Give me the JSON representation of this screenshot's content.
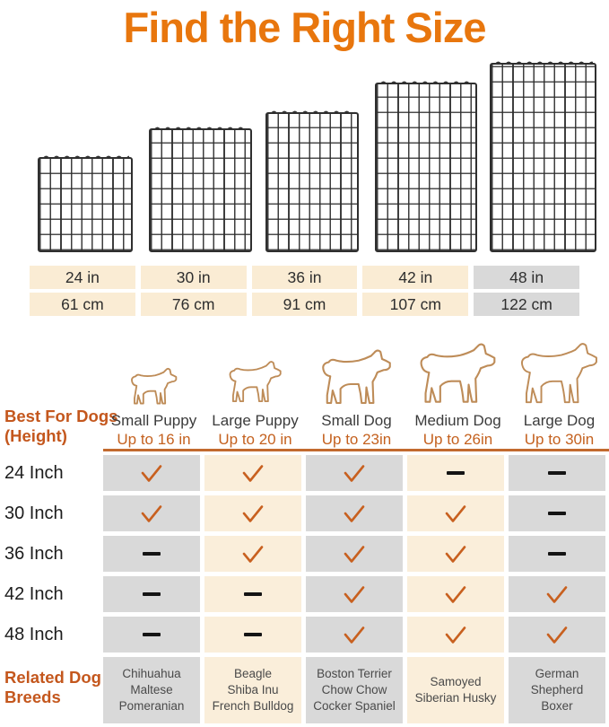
{
  "title": "Find the Right Size",
  "colors": {
    "title_orange": "#E8760D",
    "accent_orange": "#C4611F",
    "check_orange": "#C8601F",
    "divider_orange": "#C26A2E",
    "cream_cell": "#FAECD4",
    "gray_cell": "#D9D9D9",
    "dog_outline_tan": "#BE8C58",
    "wire_dark": "#2F2F2F",
    "breed_text": "#4A4A4A"
  },
  "size_table": {
    "columns": [
      {
        "inches": "24 in",
        "cm": "61 cm",
        "highlighted": false
      },
      {
        "inches": "30 in",
        "cm": "76 cm",
        "highlighted": false
      },
      {
        "inches": "36 in",
        "cm": "91 cm",
        "highlighted": false
      },
      {
        "inches": "42 in",
        "cm": "107 cm",
        "highlighted": false
      },
      {
        "inches": "48 in",
        "cm": "122 cm",
        "highlighted": true
      }
    ]
  },
  "dog_header": {
    "row_label_line1": "Best For Dogs",
    "row_label_line2": "(Height)",
    "dogs": [
      {
        "name": "Small Puppy",
        "height": "Up to 16 in"
      },
      {
        "name": "Large Puppy",
        "height": "Up to 20 in"
      },
      {
        "name": "Small Dog",
        "height": "Up to 23in"
      },
      {
        "name": "Medium Dog",
        "height": "Up to 26in"
      },
      {
        "name": "Large Dog",
        "height": "Up to 30in"
      }
    ]
  },
  "matrix": {
    "rows": [
      {
        "label": "24 Inch",
        "cells": [
          "check",
          "check",
          "check",
          "dash",
          "dash"
        ]
      },
      {
        "label": "30 Inch",
        "cells": [
          "check",
          "check",
          "check",
          "check",
          "dash"
        ]
      },
      {
        "label": "36 Inch",
        "cells": [
          "dash",
          "check",
          "check",
          "check",
          "dash"
        ]
      },
      {
        "label": "42 Inch",
        "cells": [
          "dash",
          "dash",
          "check",
          "check",
          "check"
        ]
      },
      {
        "label": "48 Inch",
        "cells": [
          "dash",
          "dash",
          "check",
          "check",
          "check"
        ]
      }
    ]
  },
  "breeds": {
    "row_label_line1": "Related Dog",
    "row_label_line2": "Breeds",
    "cells": [
      [
        "Chihuahua",
        "Maltese",
        "Pomeranian"
      ],
      [
        "Beagle",
        "Shiba Inu",
        "French Bulldog"
      ],
      [
        "Boston Terrier",
        "Chow Chow",
        "Cocker Spaniel"
      ],
      [
        "Samoyed",
        "Siberian Husky"
      ],
      [
        "German Shepherd",
        "Boxer"
      ]
    ]
  },
  "chart_data": {
    "type": "table",
    "title": "Find the Right Size",
    "panel_sizes_in": [
      "24 in",
      "30 in",
      "36 in",
      "42 in",
      "48 in"
    ],
    "panel_sizes_cm": [
      "61 cm",
      "76 cm",
      "91 cm",
      "107 cm",
      "122 cm"
    ],
    "column_headers": [
      "Small Puppy Up to 16 in",
      "Large Puppy Up to 20 in",
      "Small Dog Up to 23in",
      "Medium Dog Up to 26in",
      "Large Dog Up to 30in"
    ],
    "row_headers": [
      "24 Inch",
      "30 Inch",
      "36 Inch",
      "42 Inch",
      "48 Inch"
    ],
    "suitable": [
      [
        true,
        true,
        true,
        false,
        false
      ],
      [
        true,
        true,
        true,
        true,
        false
      ],
      [
        false,
        true,
        true,
        true,
        false
      ],
      [
        false,
        false,
        true,
        true,
        true
      ],
      [
        false,
        false,
        true,
        true,
        true
      ]
    ],
    "related_breeds": [
      "Chihuahua Maltese Pomeranian",
      "Beagle Shiba Inu French Bulldog",
      "Boston Terrier Chow Chow Cocker Spaniel",
      "Samoyed Siberian Husky",
      "German Shepherd Boxer"
    ]
  }
}
